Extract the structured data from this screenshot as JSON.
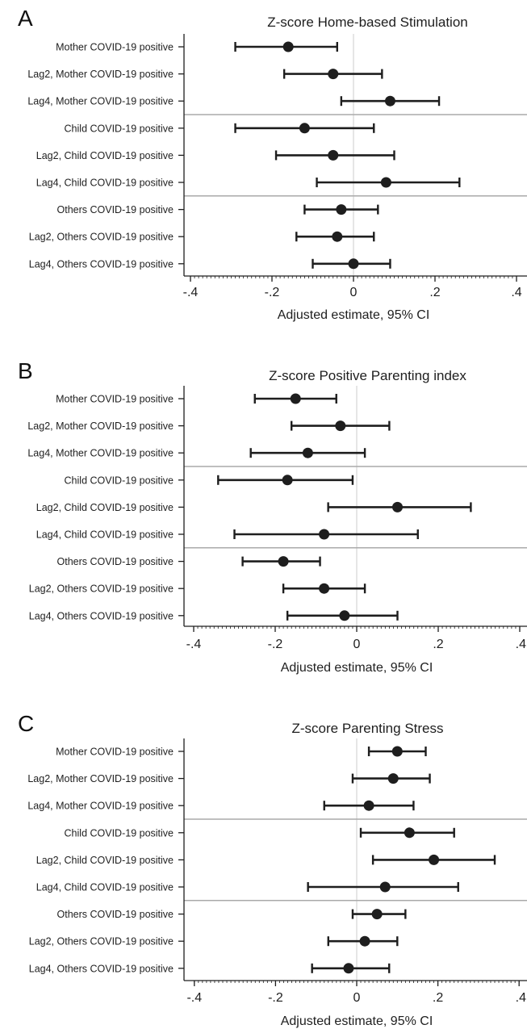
{
  "chart_data": [
    {
      "type": "forest",
      "panel": "A",
      "title": "Z-score Home-based Stimulation",
      "xlabel": "Adjusted estimate, 95% CI",
      "xlim": [
        -0.4,
        0.4
      ],
      "xticks": [
        -0.4,
        -0.2,
        0,
        0.2,
        0.4
      ],
      "xtick_labels": [
        "-.4",
        "-.2",
        "0",
        ".2",
        ".4"
      ],
      "reference_line": 0,
      "group_separators_after_rows": [
        3,
        6
      ],
      "rows": [
        {
          "label": "Mother COVID-19 positive",
          "estimate": -0.16,
          "lower": -0.29,
          "upper": -0.04
        },
        {
          "label": "Lag2, Mother COVID-19 positive",
          "estimate": -0.05,
          "lower": -0.17,
          "upper": 0.07
        },
        {
          "label": "Lag4, Mother COVID-19 positive",
          "estimate": 0.09,
          "lower": -0.03,
          "upper": 0.21
        },
        {
          "label": "Child COVID-19 positive",
          "estimate": -0.12,
          "lower": -0.29,
          "upper": 0.05
        },
        {
          "label": "Lag2, Child COVID-19 positive",
          "estimate": -0.05,
          "lower": -0.19,
          "upper": 0.1
        },
        {
          "label": "Lag4, Child COVID-19 positive",
          "estimate": 0.08,
          "lower": -0.09,
          "upper": 0.26
        },
        {
          "label": "Others COVID-19 positive",
          "estimate": -0.03,
          "lower": -0.12,
          "upper": 0.06
        },
        {
          "label": "Lag2, Others COVID-19 positive",
          "estimate": -0.04,
          "lower": -0.14,
          "upper": 0.05
        },
        {
          "label": "Lag4, Others COVID-19 positive",
          "estimate": 0.0,
          "lower": -0.1,
          "upper": 0.09
        }
      ]
    },
    {
      "type": "forest",
      "panel": "B",
      "title": "Z-score Positive Parenting index",
      "xlabel": "Adjusted estimate, 95% CI",
      "xlim": [
        -0.4,
        0.4
      ],
      "xticks": [
        -0.4,
        -0.2,
        0,
        0.2,
        0.4
      ],
      "xtick_labels": [
        "-.4",
        "-.2",
        "0",
        ".2",
        ".4"
      ],
      "reference_line": 0,
      "group_separators_after_rows": [
        3,
        6
      ],
      "rows": [
        {
          "label": "Mother COVID-19 positive",
          "estimate": -0.15,
          "lower": -0.25,
          "upper": -0.05
        },
        {
          "label": "Lag2, Mother COVID-19 positive",
          "estimate": -0.04,
          "lower": -0.16,
          "upper": 0.08
        },
        {
          "label": "Lag4, Mother COVID-19 positive",
          "estimate": -0.12,
          "lower": -0.26,
          "upper": 0.02
        },
        {
          "label": "Child COVID-19 positive",
          "estimate": -0.17,
          "lower": -0.34,
          "upper": -0.01
        },
        {
          "label": "Lag2, Child COVID-19 positive",
          "estimate": 0.1,
          "lower": -0.07,
          "upper": 0.28
        },
        {
          "label": "Lag4, Child COVID-19 positive",
          "estimate": -0.08,
          "lower": -0.3,
          "upper": 0.15
        },
        {
          "label": "Others COVID-19 positive",
          "estimate": -0.18,
          "lower": -0.28,
          "upper": -0.09
        },
        {
          "label": "Lag2, Others COVID-19 positive",
          "estimate": -0.08,
          "lower": -0.18,
          "upper": 0.02
        },
        {
          "label": "Lag4, Others COVID-19 positive",
          "estimate": -0.03,
          "lower": -0.17,
          "upper": 0.1
        }
      ]
    },
    {
      "type": "forest",
      "panel": "C",
      "title": "Z-score Parenting Stress",
      "xlabel": "Adjusted estimate, 95% CI",
      "xlim": [
        -0.4,
        0.4
      ],
      "xticks": [
        -0.4,
        -0.2,
        0,
        0.2,
        0.4
      ],
      "xtick_labels": [
        "-.4",
        "-.2",
        "0",
        ".2",
        ".4"
      ],
      "reference_line": 0,
      "group_separators_after_rows": [
        3,
        6
      ],
      "rows": [
        {
          "label": "Mother COVID-19 positive",
          "estimate": 0.1,
          "lower": 0.03,
          "upper": 0.17
        },
        {
          "label": "Lag2, Mother COVID-19 positive",
          "estimate": 0.09,
          "lower": -0.01,
          "upper": 0.18
        },
        {
          "label": "Lag4, Mother COVID-19 positive",
          "estimate": 0.03,
          "lower": -0.08,
          "upper": 0.14
        },
        {
          "label": "Child COVID-19 positive",
          "estimate": 0.13,
          "lower": 0.01,
          "upper": 0.24
        },
        {
          "label": "Lag2, Child COVID-19 positive",
          "estimate": 0.19,
          "lower": 0.04,
          "upper": 0.34
        },
        {
          "label": "Lag4, Child COVID-19 positive",
          "estimate": 0.07,
          "lower": -0.12,
          "upper": 0.25
        },
        {
          "label": "Others COVID-19 positive",
          "estimate": 0.05,
          "lower": -0.01,
          "upper": 0.12
        },
        {
          "label": "Lag2, Others COVID-19 positive",
          "estimate": 0.02,
          "lower": -0.07,
          "upper": 0.1
        },
        {
          "label": "Lag4, Others COVID-19 positive",
          "estimate": -0.02,
          "lower": -0.11,
          "upper": 0.08
        }
      ]
    }
  ],
  "colors": {
    "marker": "#1e1e1e",
    "ci_line": "#1e1e1e",
    "reference_line": "#e6e6e6",
    "separator": "#aaaaaa",
    "axis": "#1e1e1e",
    "text": "#1e1e1e"
  }
}
